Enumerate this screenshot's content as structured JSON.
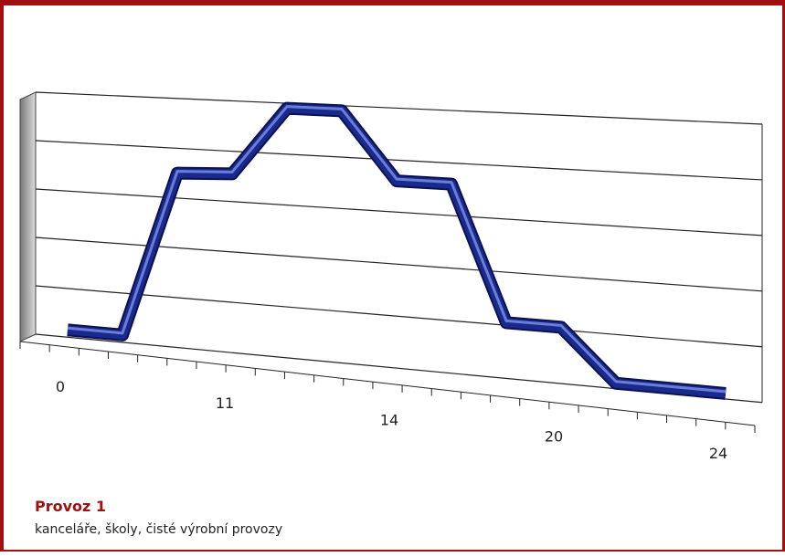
{
  "chart_data": {
    "type": "line",
    "categories": [
      "0",
      null,
      null,
      "11",
      null,
      null,
      "14",
      null,
      null,
      "20",
      null,
      null,
      "24"
    ],
    "series": [
      {
        "color": "#1a2a8c",
        "values": [
          0.15,
          0.15,
          3.5,
          3.55,
          4.9,
          4.9,
          3.6,
          3.6,
          1.05,
          1.05,
          0.1,
          0.1,
          0.1
        ]
      }
    ],
    "ylim": [
      0,
      5
    ],
    "yticks": [
      0,
      1,
      2,
      3,
      4,
      5
    ],
    "grid": true,
    "caption_title": "Provoz 1",
    "caption_text": "kanceláře, školy, čisté výrobní provozy"
  }
}
